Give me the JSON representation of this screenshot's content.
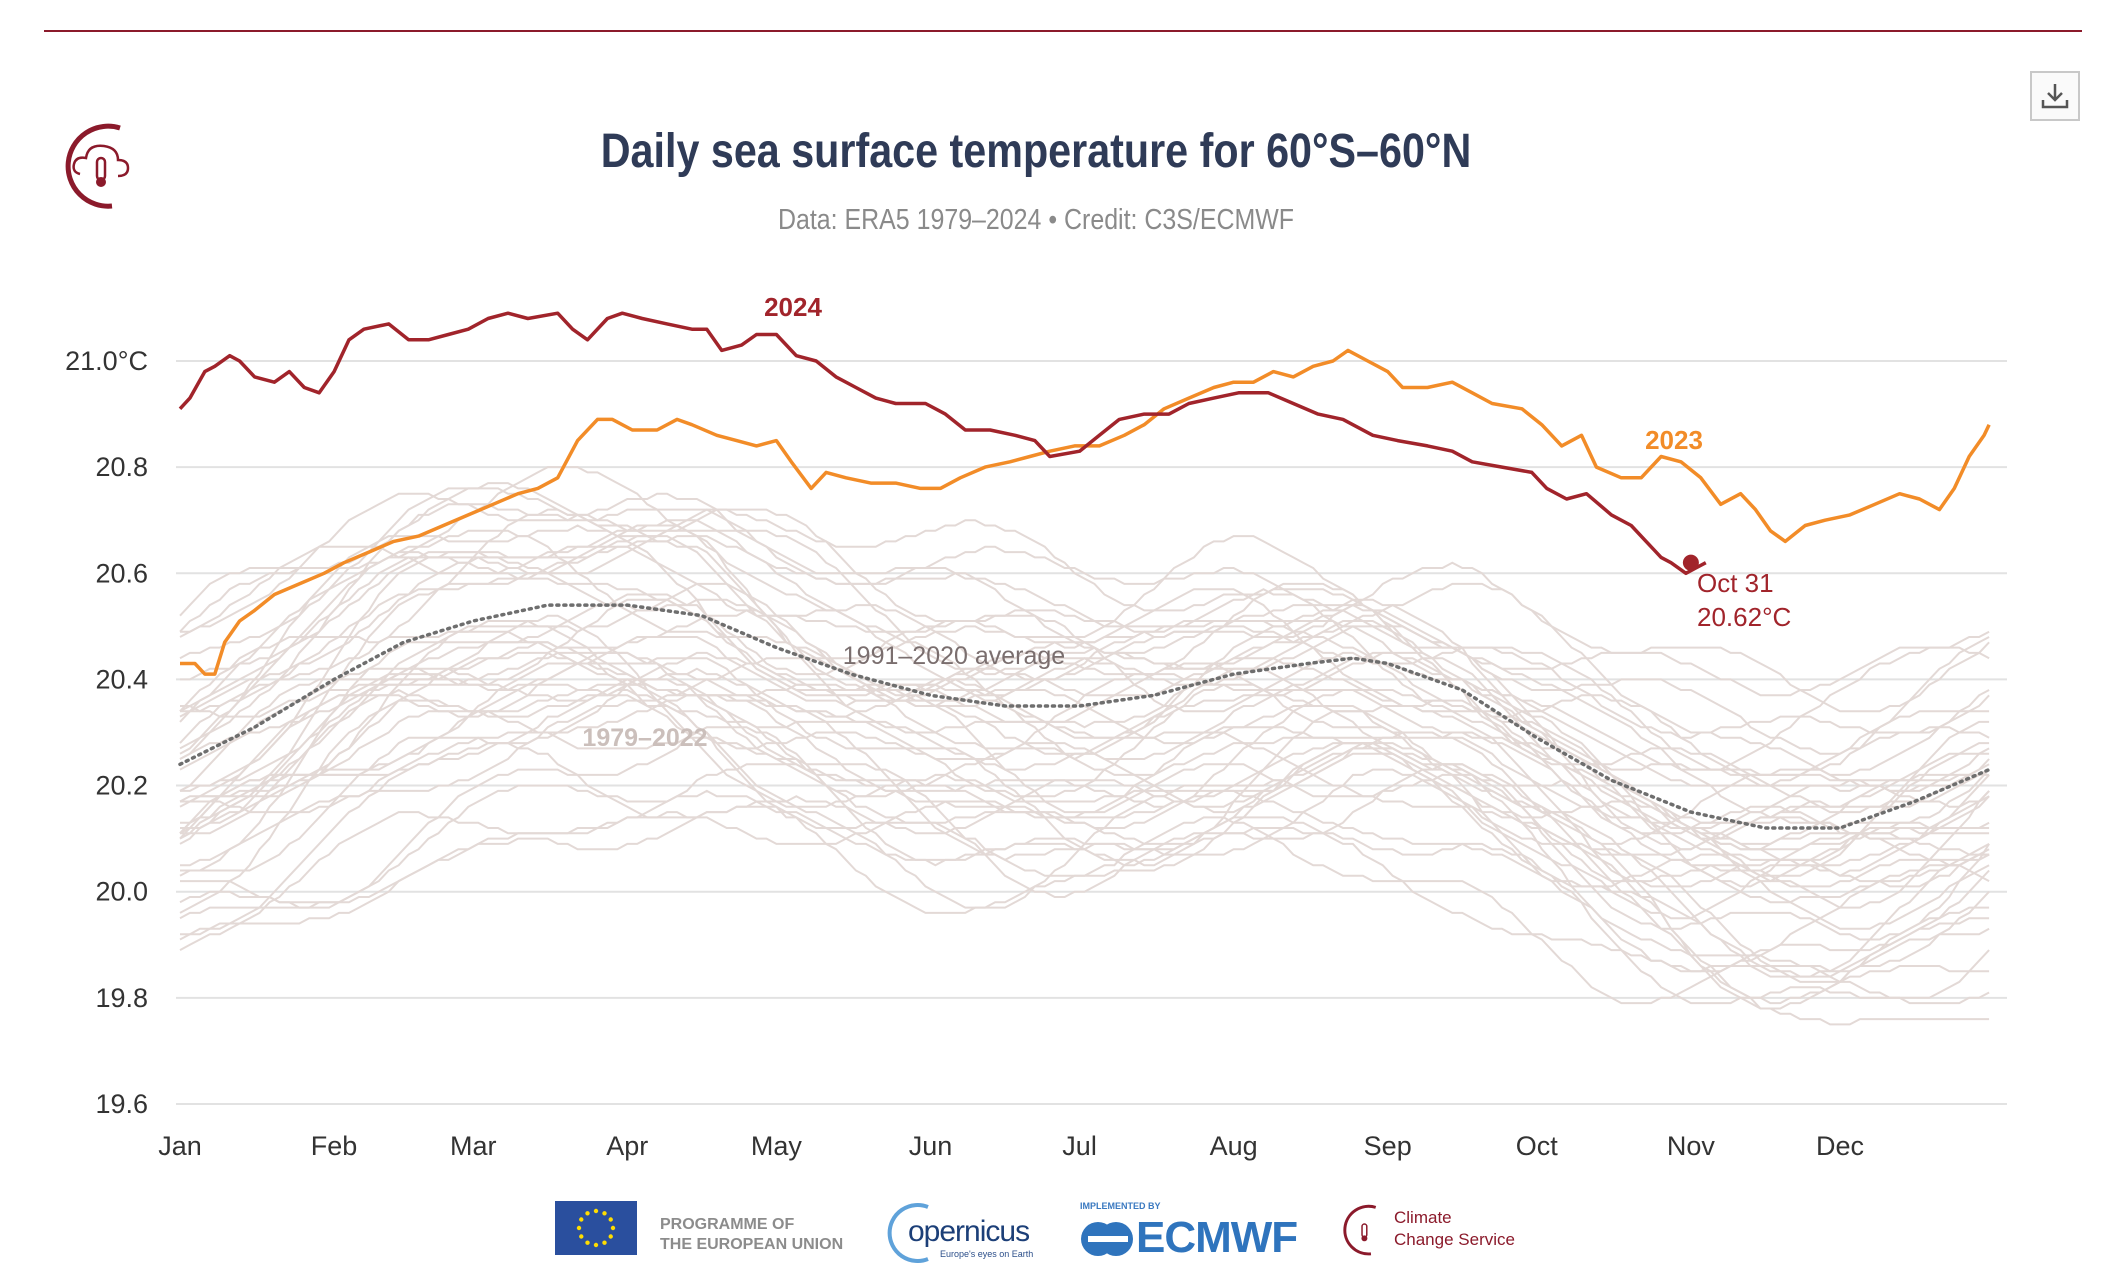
{
  "header": {
    "title": "Daily sea surface temperature for 60°S–60°N",
    "subtitle": "Data: ERA5 1979–2024 • Credit: C3S/ECMWF",
    "download_icon": "download-icon",
    "logo_icon": "climate-change-service-icon"
  },
  "colors": {
    "y2024": "#a1242b",
    "y2023": "#f28c28",
    "average": "#6e6e6e",
    "background": "#e3d9d6",
    "grid": "#e2e2e2",
    "brand": "#8b1a2b"
  },
  "chart_data": {
    "type": "line",
    "title": "Daily sea surface temperature for 60°S–60°N",
    "xlabel": "",
    "ylabel": "°C",
    "ylim": [
      19.6,
      21.1
    ],
    "yticks": [
      {
        "value": 21.0,
        "label": "21.0°C"
      },
      {
        "value": 20.8,
        "label": "20.8"
      },
      {
        "value": 20.6,
        "label": "20.6"
      },
      {
        "value": 20.4,
        "label": "20.4"
      },
      {
        "value": 20.2,
        "label": "20.2"
      },
      {
        "value": 20.0,
        "label": "20.0"
      },
      {
        "value": 19.8,
        "label": "19.8"
      },
      {
        "value": 19.6,
        "label": "19.6"
      }
    ],
    "xticks": [
      {
        "day": 0,
        "label": "Jan"
      },
      {
        "day": 31,
        "label": "Feb"
      },
      {
        "day": 59,
        "label": "Mar"
      },
      {
        "day": 90,
        "label": "Apr"
      },
      {
        "day": 120,
        "label": "May"
      },
      {
        "day": 151,
        "label": "Jun"
      },
      {
        "day": 181,
        "label": "Jul"
      },
      {
        "day": 212,
        "label": "Aug"
      },
      {
        "day": 243,
        "label": "Sep"
      },
      {
        "day": 273,
        "label": "Oct"
      },
      {
        "day": 304,
        "label": "Nov"
      },
      {
        "day": 334,
        "label": "Dec"
      }
    ],
    "grid": true,
    "series": [
      {
        "name": "2024",
        "label": "2024",
        "points": [
          [
            0,
            20.91
          ],
          [
            2,
            20.93
          ],
          [
            5,
            20.98
          ],
          [
            7,
            20.99
          ],
          [
            10,
            21.01
          ],
          [
            12,
            21.0
          ],
          [
            15,
            20.97
          ],
          [
            19,
            20.96
          ],
          [
            22,
            20.98
          ],
          [
            25,
            20.95
          ],
          [
            28,
            20.94
          ],
          [
            31,
            20.98
          ],
          [
            34,
            21.04
          ],
          [
            37,
            21.06
          ],
          [
            42,
            21.07
          ],
          [
            46,
            21.04
          ],
          [
            50,
            21.04
          ],
          [
            54,
            21.05
          ],
          [
            58,
            21.06
          ],
          [
            62,
            21.08
          ],
          [
            66,
            21.09
          ],
          [
            70,
            21.08
          ],
          [
            76,
            21.09
          ],
          [
            79,
            21.06
          ],
          [
            82,
            21.04
          ],
          [
            86,
            21.08
          ],
          [
            89,
            21.09
          ],
          [
            93,
            21.08
          ],
          [
            98,
            21.07
          ],
          [
            103,
            21.06
          ],
          [
            106,
            21.06
          ],
          [
            109,
            21.02
          ],
          [
            113,
            21.03
          ],
          [
            116,
            21.05
          ],
          [
            120,
            21.05
          ],
          [
            124,
            21.01
          ],
          [
            128,
            21.0
          ],
          [
            132,
            20.97
          ],
          [
            136,
            20.95
          ],
          [
            140,
            20.93
          ],
          [
            144,
            20.92
          ],
          [
            150,
            20.92
          ],
          [
            154,
            20.9
          ],
          [
            158,
            20.87
          ],
          [
            163,
            20.87
          ],
          [
            168,
            20.86
          ],
          [
            172,
            20.85
          ],
          [
            175,
            20.82
          ],
          [
            181,
            20.83
          ],
          [
            185,
            20.86
          ],
          [
            189,
            20.89
          ],
          [
            194,
            20.9
          ],
          [
            199,
            20.9
          ],
          [
            203,
            20.92
          ],
          [
            208,
            20.93
          ],
          [
            213,
            20.94
          ],
          [
            219,
            20.94
          ],
          [
            224,
            20.92
          ],
          [
            229,
            20.9
          ],
          [
            234,
            20.89
          ],
          [
            240,
            20.86
          ],
          [
            245,
            20.85
          ],
          [
            251,
            20.84
          ],
          [
            256,
            20.83
          ],
          [
            260,
            20.81
          ],
          [
            266,
            20.8
          ],
          [
            272,
            20.79
          ],
          [
            275,
            20.76
          ],
          [
            279,
            20.74
          ],
          [
            283,
            20.75
          ],
          [
            288,
            20.71
          ],
          [
            292,
            20.69
          ],
          [
            295,
            20.66
          ],
          [
            298,
            20.63
          ],
          [
            300,
            20.62
          ],
          [
            303,
            20.6
          ],
          [
            305,
            20.61
          ],
          [
            307,
            20.62
          ]
        ]
      },
      {
        "name": "2023",
        "label": "2023",
        "points": [
          [
            0,
            20.43
          ],
          [
            3,
            20.43
          ],
          [
            5,
            20.41
          ],
          [
            7,
            20.41
          ],
          [
            9,
            20.47
          ],
          [
            12,
            20.51
          ],
          [
            15,
            20.53
          ],
          [
            19,
            20.56
          ],
          [
            24,
            20.58
          ],
          [
            29,
            20.6
          ],
          [
            33,
            20.62
          ],
          [
            38,
            20.64
          ],
          [
            43,
            20.66
          ],
          [
            48,
            20.67
          ],
          [
            53,
            20.69
          ],
          [
            58,
            20.71
          ],
          [
            63,
            20.73
          ],
          [
            68,
            20.75
          ],
          [
            72,
            20.76
          ],
          [
            76,
            20.78
          ],
          [
            80,
            20.85
          ],
          [
            84,
            20.89
          ],
          [
            87,
            20.89
          ],
          [
            91,
            20.87
          ],
          [
            96,
            20.87
          ],
          [
            100,
            20.89
          ],
          [
            103,
            20.88
          ],
          [
            108,
            20.86
          ],
          [
            112,
            20.85
          ],
          [
            116,
            20.84
          ],
          [
            120,
            20.85
          ],
          [
            123,
            20.81
          ],
          [
            127,
            20.76
          ],
          [
            130,
            20.79
          ],
          [
            134,
            20.78
          ],
          [
            139,
            20.77
          ],
          [
            144,
            20.77
          ],
          [
            149,
            20.76
          ],
          [
            153,
            20.76
          ],
          [
            157,
            20.78
          ],
          [
            162,
            20.8
          ],
          [
            167,
            20.81
          ],
          [
            171,
            20.82
          ],
          [
            175,
            20.83
          ],
          [
            180,
            20.84
          ],
          [
            185,
            20.84
          ],
          [
            190,
            20.86
          ],
          [
            194,
            20.88
          ],
          [
            198,
            20.91
          ],
          [
            203,
            20.93
          ],
          [
            208,
            20.95
          ],
          [
            212,
            20.96
          ],
          [
            216,
            20.96
          ],
          [
            220,
            20.98
          ],
          [
            224,
            20.97
          ],
          [
            228,
            20.99
          ],
          [
            232,
            21.0
          ],
          [
            235,
            21.02
          ],
          [
            239,
            21.0
          ],
          [
            243,
            20.98
          ],
          [
            246,
            20.95
          ],
          [
            251,
            20.95
          ],
          [
            256,
            20.96
          ],
          [
            260,
            20.94
          ],
          [
            264,
            20.92
          ],
          [
            270,
            20.91
          ],
          [
            274,
            20.88
          ],
          [
            278,
            20.84
          ],
          [
            282,
            20.86
          ],
          [
            285,
            20.8
          ],
          [
            290,
            20.78
          ],
          [
            294,
            20.78
          ],
          [
            298,
            20.82
          ],
          [
            302,
            20.81
          ],
          [
            306,
            20.78
          ],
          [
            310,
            20.73
          ],
          [
            314,
            20.75
          ],
          [
            317,
            20.72
          ],
          [
            320,
            20.68
          ],
          [
            323,
            20.66
          ],
          [
            327,
            20.69
          ],
          [
            331,
            20.7
          ],
          [
            336,
            20.71
          ],
          [
            341,
            20.73
          ],
          [
            346,
            20.75
          ],
          [
            350,
            20.74
          ],
          [
            354,
            20.72
          ],
          [
            357,
            20.76
          ],
          [
            360,
            20.82
          ],
          [
            363,
            20.86
          ],
          [
            364,
            20.88
          ]
        ]
      },
      {
        "name": "1991–2020 average",
        "label": "1991–2020 average",
        "style": "dotted",
        "points": [
          [
            0,
            20.24
          ],
          [
            15,
            20.31
          ],
          [
            31,
            20.4
          ],
          [
            45,
            20.47
          ],
          [
            59,
            20.51
          ],
          [
            74,
            20.54
          ],
          [
            90,
            20.54
          ],
          [
            105,
            20.52
          ],
          [
            120,
            20.46
          ],
          [
            135,
            20.41
          ],
          [
            151,
            20.37
          ],
          [
            166,
            20.35
          ],
          [
            181,
            20.35
          ],
          [
            196,
            20.37
          ],
          [
            212,
            20.41
          ],
          [
            227,
            20.43
          ],
          [
            236,
            20.44
          ],
          [
            243,
            20.43
          ],
          [
            258,
            20.38
          ],
          [
            273,
            20.29
          ],
          [
            288,
            20.21
          ],
          [
            304,
            20.15
          ],
          [
            319,
            20.12
          ],
          [
            334,
            20.12
          ],
          [
            349,
            20.17
          ],
          [
            364,
            20.23
          ]
        ]
      }
    ],
    "background_years": {
      "label": "1979–2022",
      "offsets": [
        -0.3,
        -0.27,
        -0.31,
        -0.25,
        -0.2,
        -0.28,
        -0.29,
        -0.22,
        -0.12,
        -0.2,
        -0.24,
        -0.14,
        -0.16,
        -0.21,
        -0.17,
        -0.13,
        -0.11,
        -0.16,
        -0.02,
        -0.04,
        -0.12,
        -0.1,
        -0.05,
        -0.02,
        0.0,
        -0.01,
        0.03,
        0.02,
        -0.04,
        -0.03,
        0.04,
        0.06,
        0.0,
        0.04,
        0.06,
        0.1,
        0.14,
        0.16,
        0.12,
        0.1,
        0.12,
        0.16,
        0.11,
        0.13
      ]
    },
    "annotation": {
      "label_date": "Oct 31",
      "label_value": "20.62°C",
      "day": 304,
      "value": 20.62
    }
  },
  "footer": {
    "eu_line1": "PROGRAMME OF",
    "eu_line2": "THE EUROPEAN UNION",
    "copernicus": "opernicus",
    "copernicus_tagline": "Europe's eyes on Earth",
    "implemented_by": "IMPLEMENTED BY",
    "ecmwf": "ECMWF",
    "ccs_line1": "Climate",
    "ccs_line2": "Change Service"
  }
}
